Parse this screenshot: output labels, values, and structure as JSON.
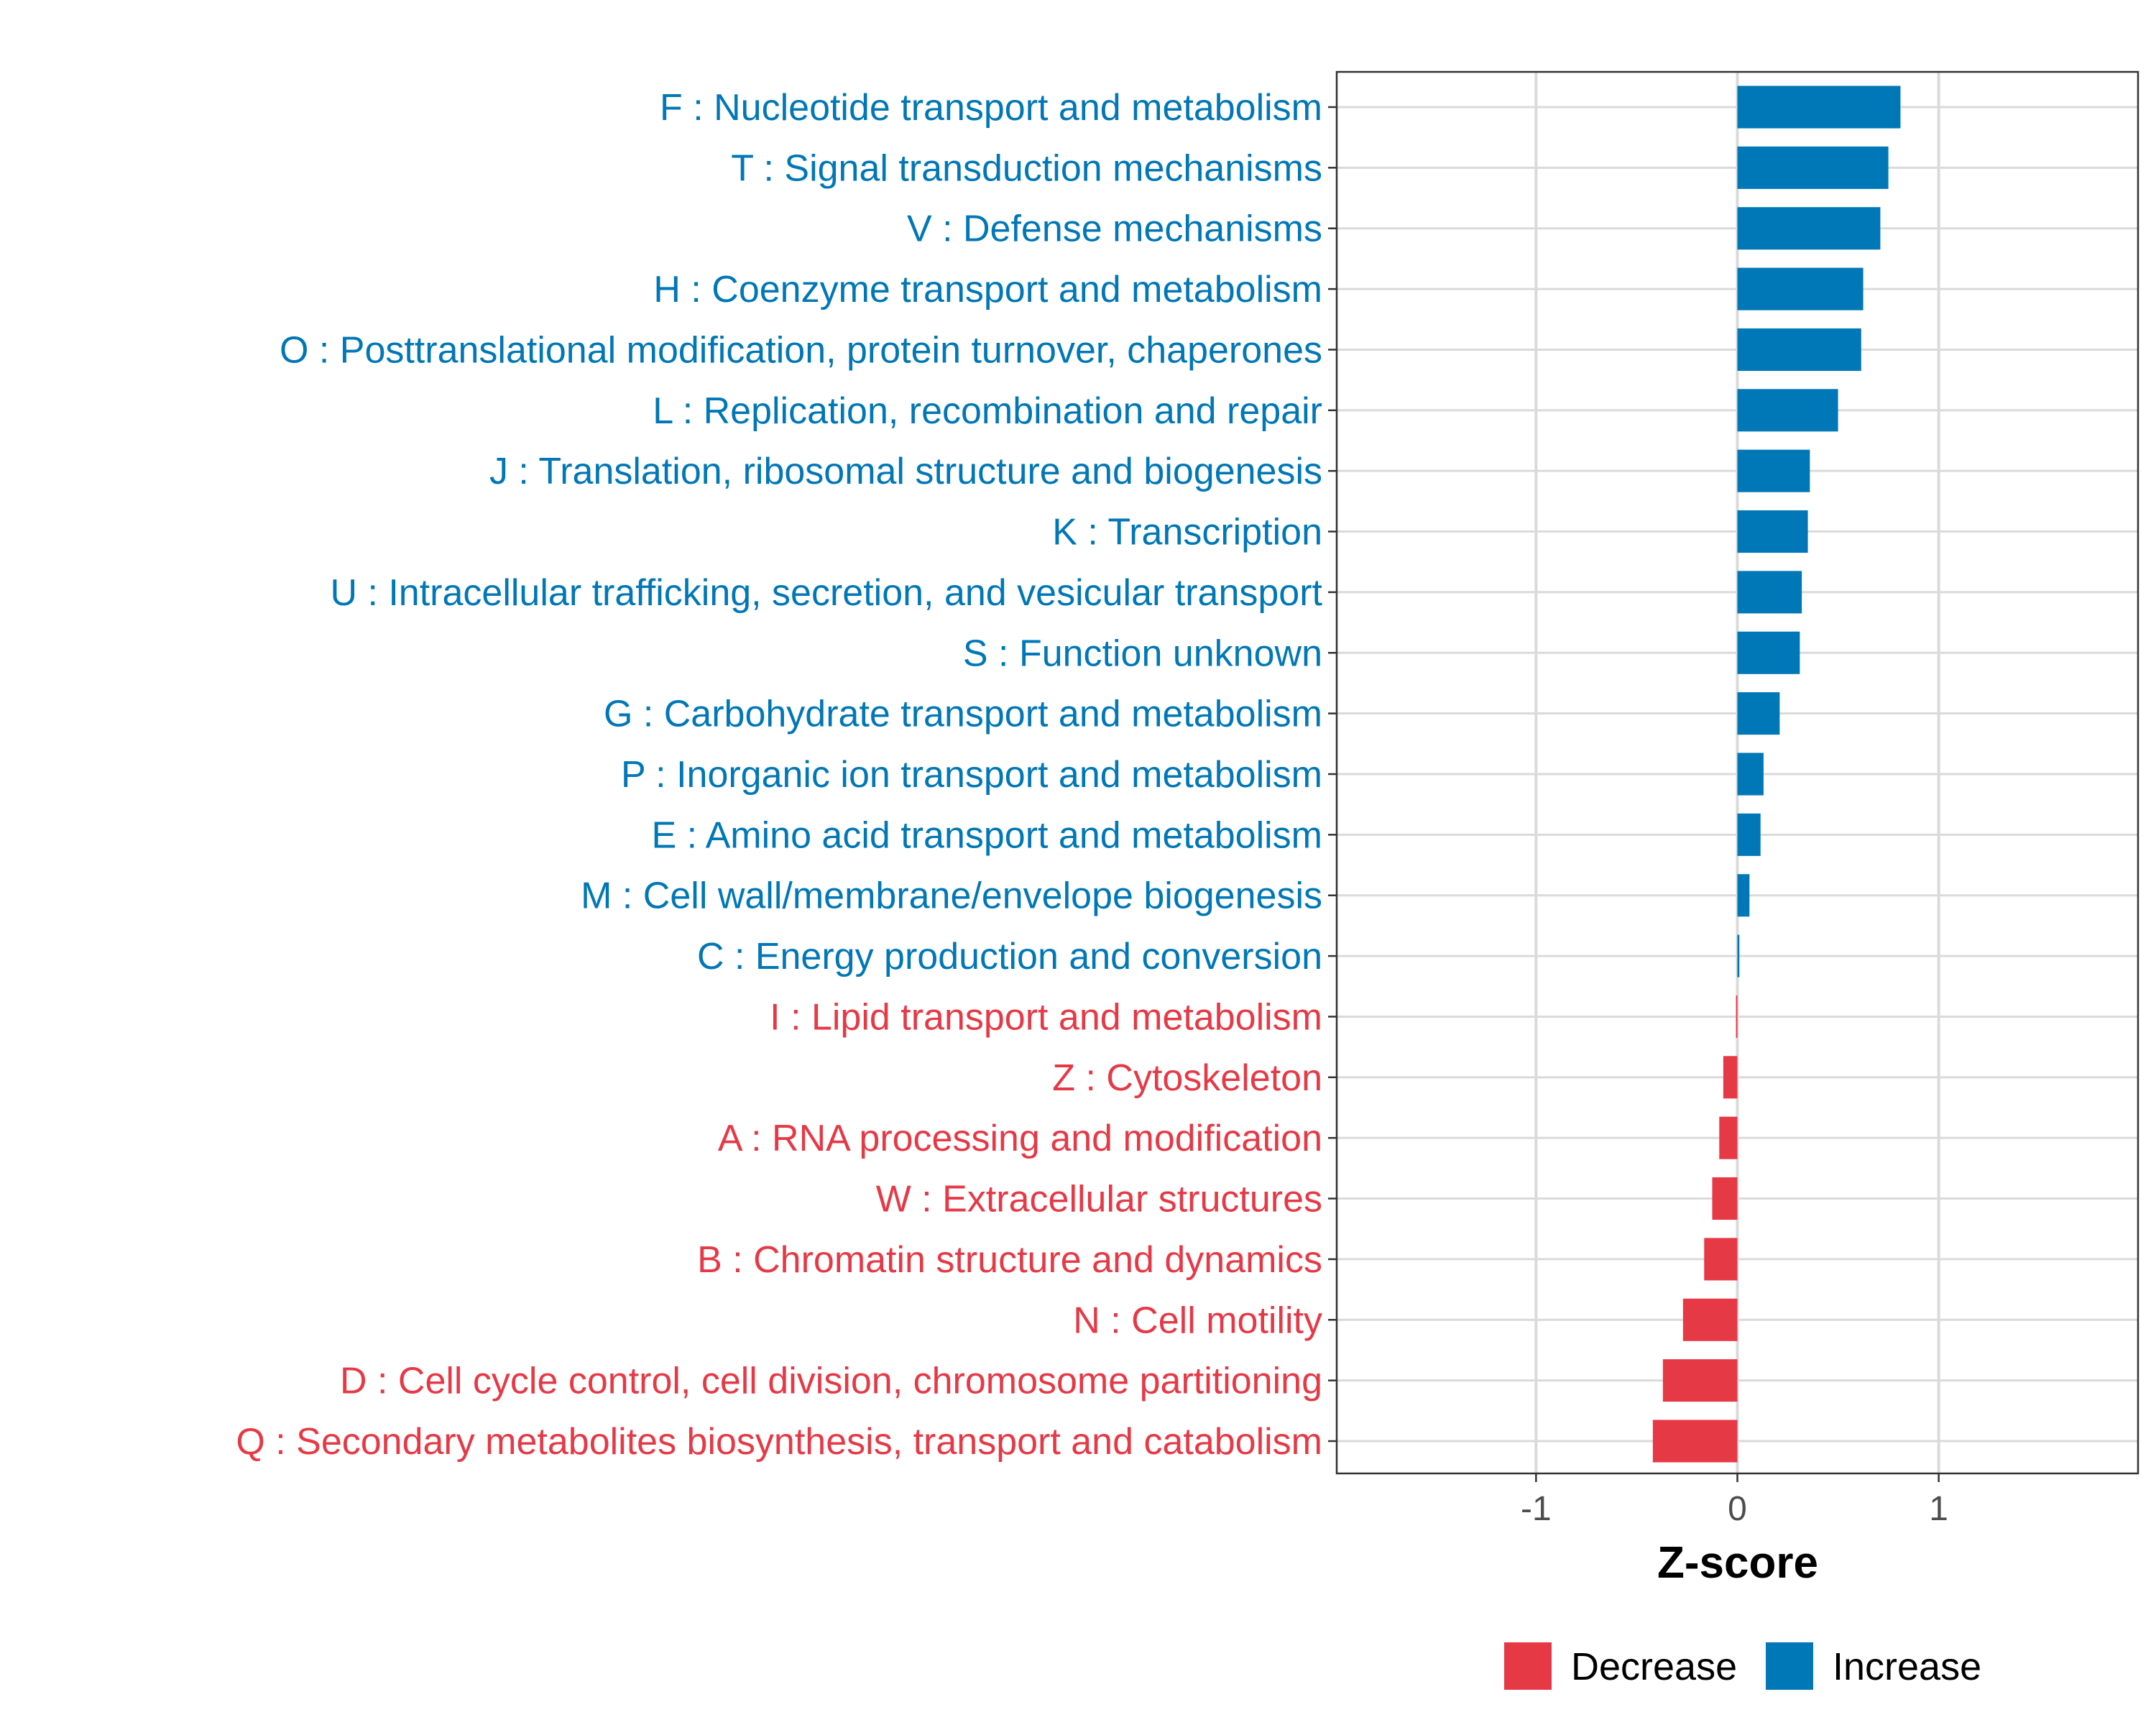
{
  "chart_data": {
    "type": "bar",
    "orientation": "horizontal",
    "title": "",
    "xlabel": "Z-score",
    "ylabel": "",
    "xlim": [
      -1.99,
      1.99
    ],
    "xticks": [
      -1,
      0,
      1
    ],
    "xtick_labels": [
      "-1",
      "0",
      "1"
    ],
    "grid": true,
    "legend": {
      "placement": "bottom",
      "entries": [
        {
          "label": "Decrease",
          "color": "#E63946"
        },
        {
          "label": "Increase",
          "color": "#0077B6"
        }
      ]
    },
    "categories": [
      "F : Nucleotide transport and metabolism",
      "T : Signal transduction mechanisms",
      "V : Defense mechanisms",
      "H : Coenzyme transport and metabolism",
      "O : Posttranslational modification, protein turnover, chaperones",
      "L : Replication, recombination and repair",
      "J : Translation, ribosomal structure and biogenesis",
      "K : Transcription",
      "U : Intracellular trafficking, secretion, and vesicular transport",
      "S : Function unknown",
      "G : Carbohydrate transport and metabolism",
      "P : Inorganic ion transport and metabolism",
      "E : Amino acid transport and metabolism",
      "M : Cell wall/membrane/envelope biogenesis",
      "C : Energy production and conversion",
      "I : Lipid transport and metabolism",
      "Z : Cytoskeleton",
      "A : RNA processing and modification",
      "W : Extracellular structures",
      "B : Chromatin structure and dynamics",
      "N : Cell motility",
      "D : Cell cycle control, cell division, chromosome partitioning",
      "Q : Secondary metabolites biosynthesis, transport and catabolism"
    ],
    "values": [
      0.81,
      0.75,
      0.71,
      0.625,
      0.615,
      0.5,
      0.36,
      0.35,
      0.32,
      0.31,
      0.21,
      0.13,
      0.115,
      0.06,
      0.01,
      -0.007,
      -0.07,
      -0.09,
      -0.125,
      -0.165,
      -0.27,
      -0.37,
      -0.42
    ],
    "groups": [
      "Increase",
      "Increase",
      "Increase",
      "Increase",
      "Increase",
      "Increase",
      "Increase",
      "Increase",
      "Increase",
      "Increase",
      "Increase",
      "Increase",
      "Increase",
      "Increase",
      "Increase",
      "Decrease",
      "Decrease",
      "Decrease",
      "Decrease",
      "Decrease",
      "Decrease",
      "Decrease",
      "Decrease"
    ]
  }
}
